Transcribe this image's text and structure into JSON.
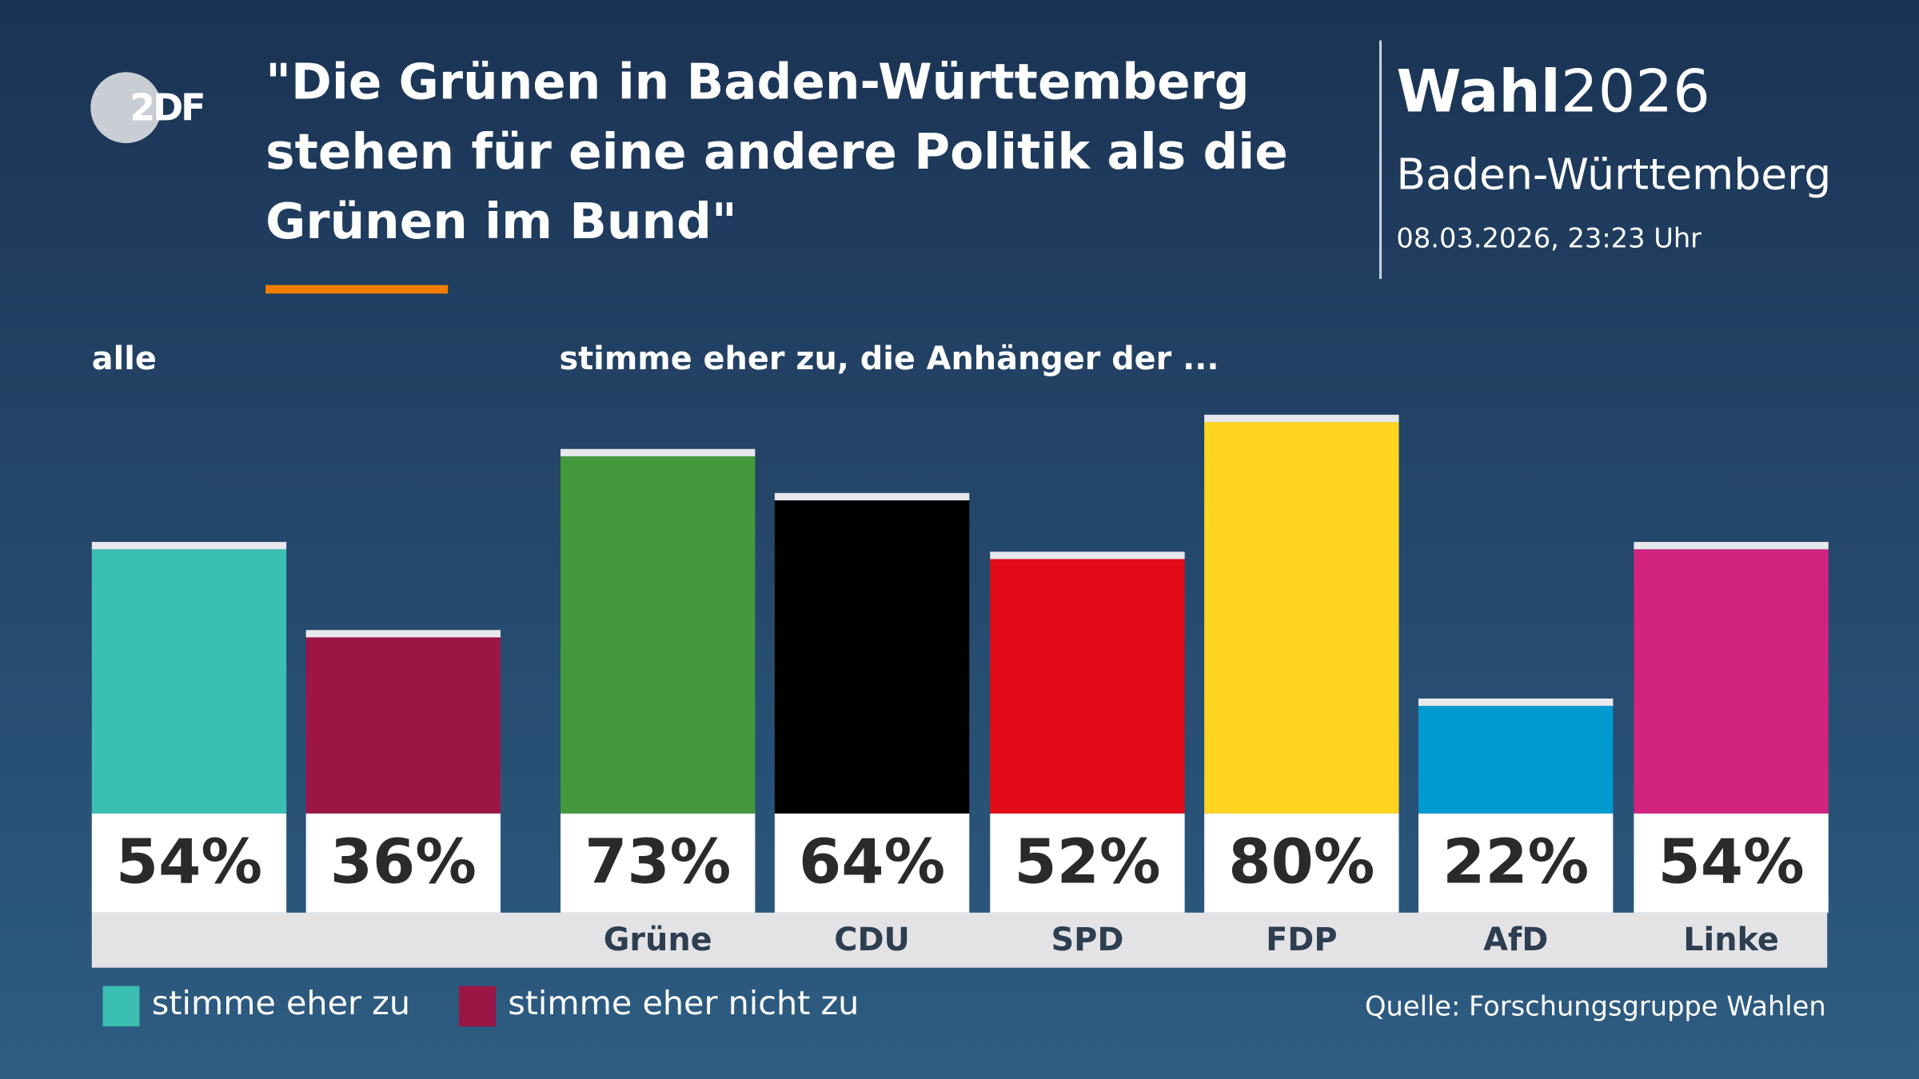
{
  "logo": "2DF",
  "brand": {
    "word": "Wahl",
    "year": "2026",
    "region": "Baden-Württemberg",
    "timestamp": "08.03.2026, 23:23 Uhr"
  },
  "chart_data": {
    "type": "bar",
    "title": [
      "\"Die Grünen in Baden-Württemberg",
      "stehen für eine andere Politik als die",
      "Grünen im Bund\""
    ],
    "group_labels": [
      "alle",
      "stimme eher zu, die Anhänger der ..."
    ],
    "categories": [
      null,
      null,
      "Grüne",
      "CDU",
      "SPD",
      "FDP",
      "AfD",
      "Linke"
    ],
    "values": [
      54,
      36,
      73,
      64,
      52,
      80,
      22,
      54
    ],
    "value_labels": [
      "54%",
      "36%",
      "73%",
      "64%",
      "52%",
      "80%",
      "22%",
      "54%"
    ],
    "colors": [
      "#3bbfb2",
      "#9b1645",
      "#43993b",
      "#000000",
      "#e30a17",
      "#ffd520",
      "#0099d0",
      "#d0247f"
    ],
    "legend": [
      {
        "name": "stimme eher zu",
        "color": "#3bbfb2"
      },
      {
        "name": "stimme eher nicht zu",
        "color": "#9b1645"
      }
    ],
    "source": "Quelle: Forschungsgruppe Wahlen"
  }
}
